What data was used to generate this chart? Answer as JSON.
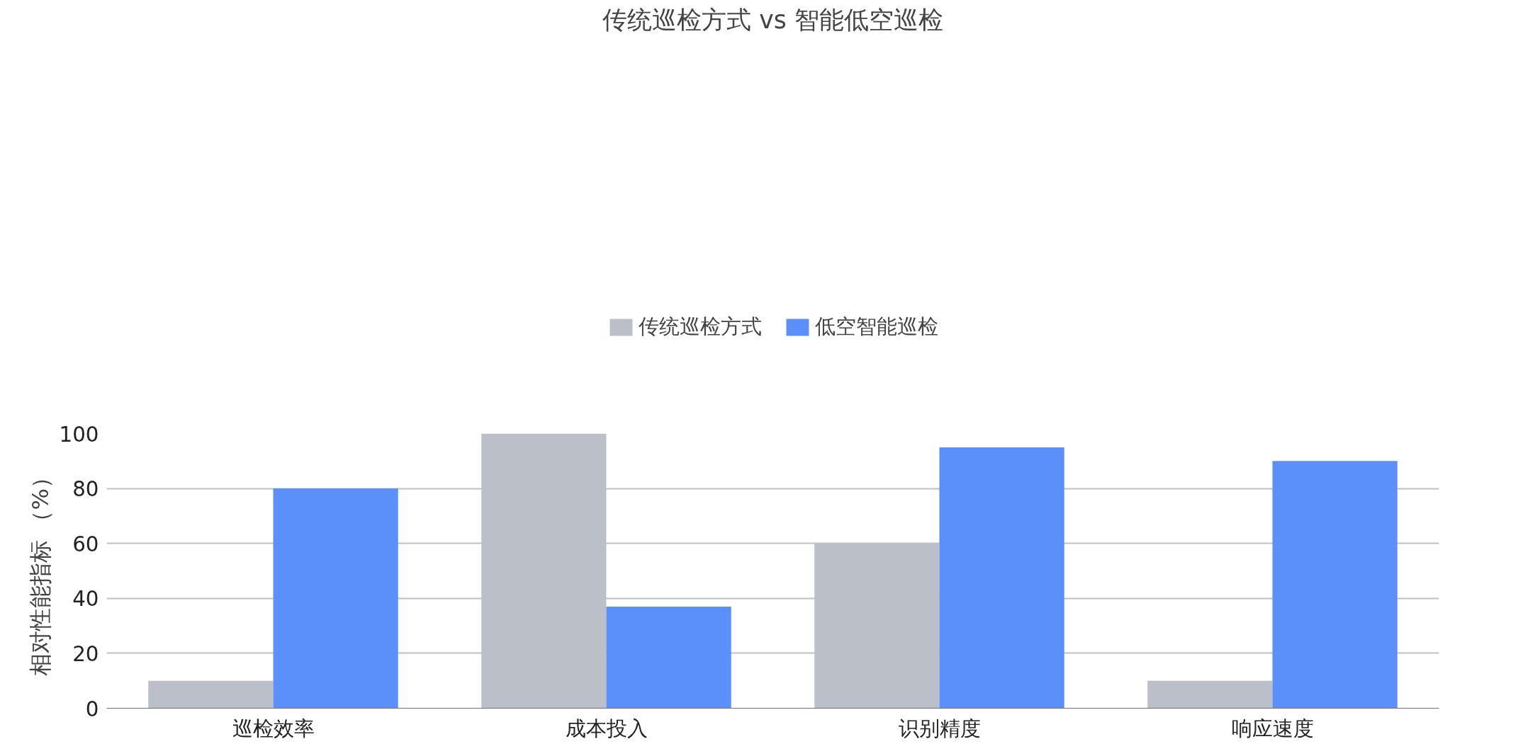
{
  "chart_data": {
    "type": "bar",
    "title": "传统巡检方式 vs 智能低空巡检",
    "ylabel": "相对性能指标 （%）",
    "categories": [
      "巡检效率",
      "成本投入",
      "识别精度",
      "响应速度"
    ],
    "series": [
      {
        "name": "传统巡检方式",
        "color": "#bbbfc8",
        "values": [
          10,
          100,
          60,
          10
        ]
      },
      {
        "name": "低空智能巡检",
        "color": "#5b8ff9",
        "values": [
          80,
          37,
          95,
          90
        ]
      }
    ],
    "ylim": [
      0,
      100
    ],
    "yticks": [
      0,
      20,
      40,
      60,
      80,
      100
    ],
    "grid": "y",
    "legend": "top"
  }
}
